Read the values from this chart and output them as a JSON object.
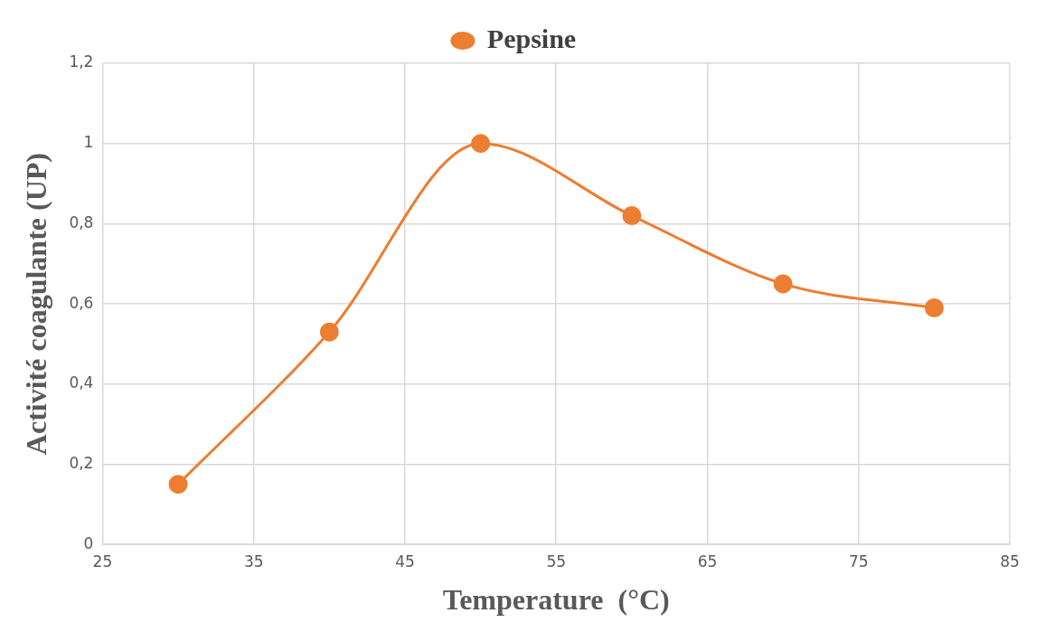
{
  "chart_data": {
    "type": "line",
    "xlabel": "Temperature  (°C)",
    "ylabel": "Activité coagulante (UP)",
    "x": [
      30,
      40,
      50,
      60,
      70,
      80
    ],
    "series": [
      {
        "name": "Pepsine",
        "color": "#ed7d31",
        "values": [
          0.15,
          0.53,
          1.0,
          0.82,
          0.65,
          0.59
        ]
      }
    ],
    "xlim": [
      25,
      85
    ],
    "xticks": [
      25,
      35,
      45,
      55,
      65,
      75,
      85
    ],
    "ylim": [
      0,
      1.2
    ],
    "yticks": [
      0,
      {
        "value": 0.2,
        "label": "0,2"
      },
      {
        "value": 0.4,
        "label": "0,4"
      },
      {
        "value": 0.6,
        "label": "0,6"
      },
      {
        "value": 0.8,
        "label": "0,8"
      },
      1,
      {
        "value": 1.2,
        "label": "1,2"
      }
    ],
    "grid": true,
    "legend": "top",
    "marker": "circle",
    "line_style": "solid"
  }
}
